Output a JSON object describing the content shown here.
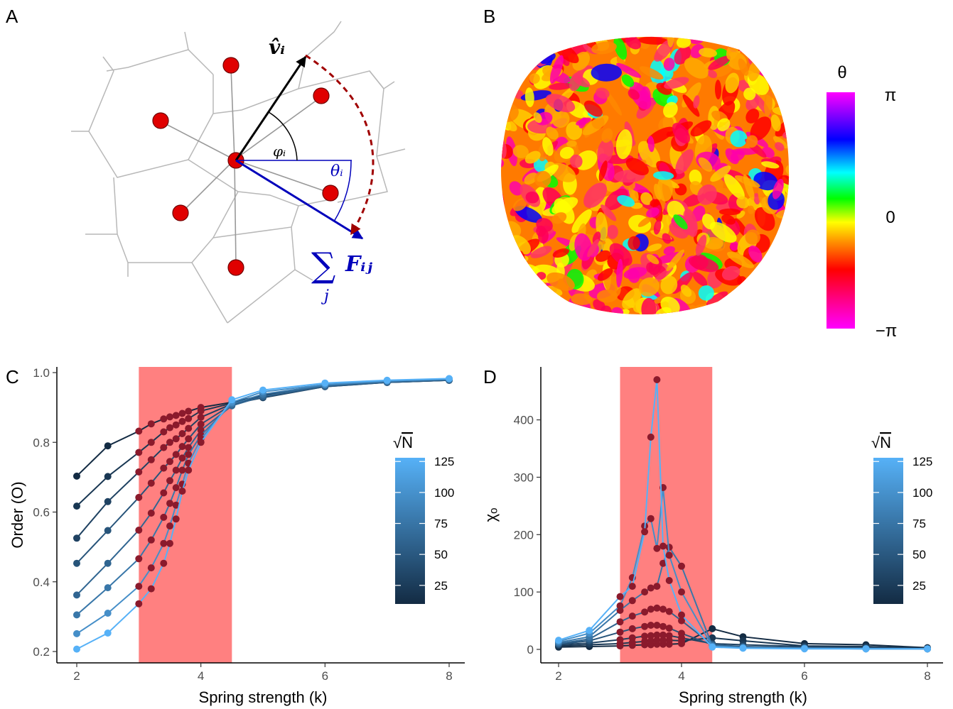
{
  "panels": {
    "a": "A",
    "b": "B",
    "c": "C",
    "d": "D"
  },
  "diagram": {
    "velocity_label": "v̂ᵢ",
    "angle_phi_label": "φᵢ",
    "angle_theta_label": "θᵢ",
    "force_sum_symbol": "∑",
    "force_sum_index": "j",
    "force_label": "Fᵢⱼ",
    "colors": {
      "cell": "#b8b8b8",
      "particle": "#e00000",
      "velocity": "#000000",
      "force": "#0000bb",
      "rotation": "#a00000",
      "spring": "#999999"
    }
  },
  "orientation_map": {
    "legend_title": "θ",
    "legend_ticks": [
      "π",
      "0",
      "−π"
    ],
    "colormap": [
      "#ff00ff",
      "#ff0088",
      "#ff0000",
      "#ff8800",
      "#ffff00",
      "#00ff00",
      "#00ffff",
      "#0000ff",
      "#ff00ff"
    ]
  },
  "highlight_color": "#ff8080",
  "size_legend": {
    "title_symbol": "√",
    "title_var": "N",
    "ticks": [
      "125",
      "100",
      "75",
      "50",
      "25"
    ],
    "colors": [
      "#132b43",
      "#56b1f7"
    ]
  },
  "chart_data": [
    {
      "type": "line",
      "panel": "C",
      "xlabel": "Spring strength (k)",
      "ylabel": "Order (O)",
      "xlim": [
        2,
        8
      ],
      "ylim": [
        0.2,
        1.0
      ],
      "xticks": [
        "2",
        "4",
        "6",
        "8"
      ],
      "yticks": [
        "0.2",
        "0.4",
        "0.6",
        "0.8",
        "1.0"
      ],
      "highlight_range": [
        3.0,
        4.5
      ],
      "x": [
        2,
        2.5,
        3,
        3.2,
        3.4,
        3.5,
        3.6,
        3.7,
        3.8,
        4,
        4.5,
        5,
        6,
        7,
        8
      ],
      "series": [
        {
          "sqrtN": 10,
          "values": [
            0.703,
            0.79,
            0.832,
            0.853,
            0.867,
            0.873,
            0.877,
            0.883,
            0.889,
            0.9,
            0.915,
            0.935,
            0.965,
            0.975,
            0.98
          ]
        },
        {
          "sqrtN": 20,
          "values": [
            0.617,
            0.702,
            0.771,
            0.8,
            0.83,
            0.842,
            0.85,
            0.86,
            0.868,
            0.89,
            0.912,
            0.932,
            0.962,
            0.972,
            0.978
          ]
        },
        {
          "sqrtN": 30,
          "values": [
            0.525,
            0.63,
            0.715,
            0.75,
            0.785,
            0.8,
            0.81,
            0.825,
            0.84,
            0.872,
            0.91,
            0.928,
            0.96,
            0.972,
            0.978
          ]
        },
        {
          "sqrtN": 45,
          "values": [
            0.453,
            0.547,
            0.642,
            0.683,
            0.726,
            0.745,
            0.765,
            0.788,
            0.81,
            0.852,
            0.908,
            0.93,
            0.96,
            0.972,
            0.978
          ]
        },
        {
          "sqrtN": 60,
          "values": [
            0.362,
            0.453,
            0.548,
            0.597,
            0.655,
            0.69,
            0.72,
            0.755,
            0.785,
            0.835,
            0.905,
            0.932,
            0.962,
            0.973,
            0.979
          ]
        },
        {
          "sqrtN": 75,
          "values": [
            0.305,
            0.383,
            0.466,
            0.52,
            0.585,
            0.625,
            0.67,
            0.72,
            0.765,
            0.82,
            0.91,
            0.938,
            0.964,
            0.975,
            0.98
          ]
        },
        {
          "sqrtN": 95,
          "values": [
            0.251,
            0.31,
            0.387,
            0.44,
            0.51,
            0.56,
            0.62,
            0.68,
            0.74,
            0.81,
            0.915,
            0.945,
            0.966,
            0.976,
            0.982
          ]
        },
        {
          "sqrtN": 125,
          "values": [
            0.207,
            0.253,
            0.337,
            0.38,
            0.453,
            0.51,
            0.58,
            0.66,
            0.72,
            0.8,
            0.922,
            0.95,
            0.97,
            0.978,
            0.983
          ]
        }
      ]
    },
    {
      "type": "line",
      "panel": "D",
      "xlabel": "Spring strength (k)",
      "ylabel": "χₒ",
      "xlim": [
        2,
        8
      ],
      "ylim": [
        0,
        470
      ],
      "xticks": [
        "2",
        "4",
        "6",
        "8"
      ],
      "yticks": [
        "0",
        "100",
        "200",
        "300",
        "400"
      ],
      "highlight_range": [
        3.0,
        4.5
      ],
      "x": [
        2,
        2.5,
        3,
        3.2,
        3.4,
        3.5,
        3.6,
        3.7,
        3.8,
        4,
        4.5,
        5,
        6,
        7,
        8
      ],
      "series": [
        {
          "sqrtN": 10,
          "values": [
            4,
            5,
            6,
            7,
            8,
            8,
            9,
            9,
            9,
            10,
            36,
            22,
            10,
            8,
            3
          ]
        },
        {
          "sqrtN": 20,
          "values": [
            6,
            8,
            10,
            12,
            14,
            15,
            16,
            16,
            16,
            15,
            20,
            15,
            6,
            5,
            2
          ]
        },
        {
          "sqrtN": 30,
          "values": [
            8,
            11,
            17,
            20,
            23,
            24,
            25,
            25,
            24,
            20,
            10,
            8,
            5,
            3,
            1
          ]
        },
        {
          "sqrtN": 45,
          "values": [
            9,
            15,
            30,
            36,
            40,
            42,
            42,
            40,
            37,
            28,
            8,
            5,
            3,
            2,
            1
          ]
        },
        {
          "sqrtN": 60,
          "values": [
            10,
            18,
            48,
            58,
            65,
            70,
            72,
            70,
            66,
            50,
            8,
            4,
            2,
            2,
            1
          ]
        },
        {
          "sqrtN": 75,
          "values": [
            12,
            22,
            68,
            85,
            100,
            107,
            110,
            150,
            178,
            145,
            6,
            3,
            2,
            1,
            1
          ]
        },
        {
          "sqrtN": 95,
          "values": [
            14,
            28,
            76,
            125,
            215,
            228,
            176,
            282,
            164,
            100,
            5,
            3,
            2,
            1,
            1
          ]
        },
        {
          "sqrtN": 125,
          "values": [
            16,
            33,
            92,
            110,
            205,
            370,
            470,
            180,
            120,
            60,
            4,
            2,
            1,
            1,
            1
          ]
        }
      ]
    }
  ]
}
